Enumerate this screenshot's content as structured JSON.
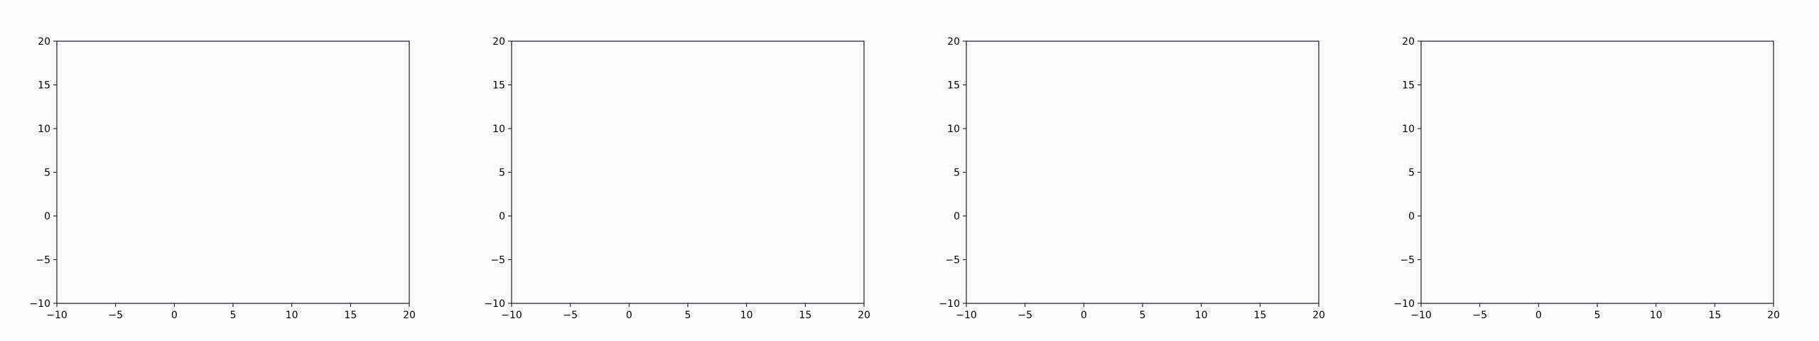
{
  "colors": {
    "background": "#fcfcfc",
    "axes_frame": "#1a1a3a",
    "tick_text": "#000000"
  },
  "chart_data": [
    {
      "type": "line",
      "xlim": [
        -10,
        20
      ],
      "ylim": [
        -10,
        20
      ],
      "xticks": [
        -10,
        -5,
        0,
        5,
        10,
        15,
        20
      ],
      "yticks": [
        -10,
        -5,
        0,
        5,
        10,
        15,
        20
      ],
      "xtick_labels": [
        "−10",
        "−5",
        "0",
        "5",
        "10",
        "15",
        "20"
      ],
      "ytick_labels": [
        "−10",
        "−5",
        "0",
        "5",
        "10",
        "15",
        "20"
      ],
      "series": [],
      "grid": false
    },
    {
      "type": "line",
      "xlim": [
        -10,
        20
      ],
      "ylim": [
        -10,
        20
      ],
      "xticks": [
        -10,
        -5,
        0,
        5,
        10,
        15,
        20
      ],
      "yticks": [
        -10,
        -5,
        0,
        5,
        10,
        15,
        20
      ],
      "xtick_labels": [
        "−10",
        "−5",
        "0",
        "5",
        "10",
        "15",
        "20"
      ],
      "ytick_labels": [
        "−10",
        "−5",
        "0",
        "5",
        "10",
        "15",
        "20"
      ],
      "series": [],
      "grid": false
    },
    {
      "type": "line",
      "xlim": [
        -10,
        20
      ],
      "ylim": [
        -10,
        20
      ],
      "xticks": [
        -10,
        -5,
        0,
        5,
        10,
        15,
        20
      ],
      "yticks": [
        -10,
        -5,
        0,
        5,
        10,
        15,
        20
      ],
      "xtick_labels": [
        "−10",
        "−5",
        "0",
        "5",
        "10",
        "15",
        "20"
      ],
      "ytick_labels": [
        "−10",
        "−5",
        "0",
        "5",
        "10",
        "15",
        "20"
      ],
      "series": [],
      "grid": false
    },
    {
      "type": "line",
      "xlim": [
        -10,
        20
      ],
      "ylim": [
        -10,
        20
      ],
      "xticks": [
        -10,
        -5,
        0,
        5,
        10,
        15,
        20
      ],
      "yticks": [
        -10,
        -5,
        0,
        5,
        10,
        15,
        20
      ],
      "xtick_labels": [
        "−10",
        "−5",
        "0",
        "5",
        "10",
        "15",
        "20"
      ],
      "ytick_labels": [
        "−10",
        "−5",
        "0",
        "5",
        "10",
        "15",
        "20"
      ],
      "series": [],
      "grid": false
    }
  ]
}
